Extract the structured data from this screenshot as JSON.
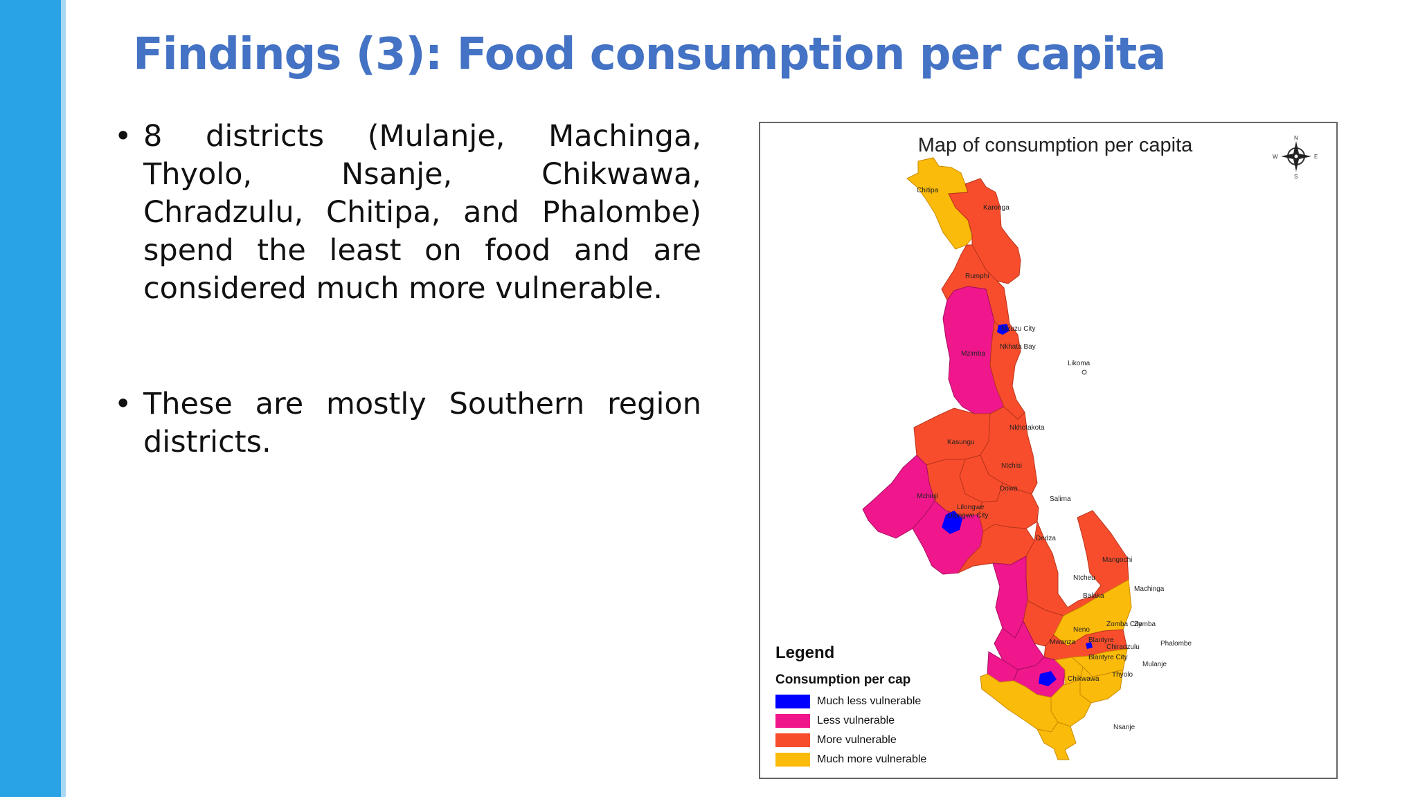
{
  "slide": {
    "title": "Findings (3): Food consumption per capita",
    "bullets": [
      "8 districts (Mulanje, Machinga, Thyolo, Nsanje, Chikwawa, Chradzulu, Chitipa, and Phalombe) spend the least on food and are considered much more vulnerable.",
      "These are mostly Southern region districts."
    ],
    "bullet_symbol": "•"
  },
  "map": {
    "title": "Map of consumption per capita",
    "compass": {
      "icon": "compass-rose-icon",
      "n": "N",
      "s": "S",
      "e": "E",
      "w": "W"
    },
    "legend": {
      "title": "Legend",
      "subtitle": "Consumption per cap",
      "items": [
        {
          "label": "Much less vulnerable",
          "color": "#0000ff"
        },
        {
          "label": "Less vulnerable",
          "color": "#f0178c"
        },
        {
          "label": "More vulnerable",
          "color": "#f84d2c"
        },
        {
          "label": "Much more vulnerable",
          "color": "#fbbb0a"
        }
      ]
    },
    "districts": [
      {
        "name": "Chitipa",
        "category": "Much more vulnerable"
      },
      {
        "name": "Karonga",
        "category": "More vulnerable"
      },
      {
        "name": "Rumphi",
        "category": "More vulnerable"
      },
      {
        "name": "Mzuzu City",
        "category": "Much less vulnerable"
      },
      {
        "name": "Nkhata Bay",
        "category": "More vulnerable"
      },
      {
        "name": "Mzimba",
        "category": "Less vulnerable"
      },
      {
        "name": "Likoma",
        "category": ""
      },
      {
        "name": "Nkhotakota",
        "category": "More vulnerable"
      },
      {
        "name": "Kasungu",
        "category": "More vulnerable"
      },
      {
        "name": "Ntchisi",
        "category": "More vulnerable"
      },
      {
        "name": "Dowa",
        "category": "More vulnerable"
      },
      {
        "name": "Mchinji",
        "category": "Less vulnerable"
      },
      {
        "name": "Salima",
        "category": "More vulnerable"
      },
      {
        "name": "Lilongwe",
        "category": "Less vulnerable"
      },
      {
        "name": "Lilongwe City",
        "category": "Much less vulnerable"
      },
      {
        "name": "Dedza",
        "category": "More vulnerable"
      },
      {
        "name": "Mangochi",
        "category": "More vulnerable"
      },
      {
        "name": "Ntcheu",
        "category": "Less vulnerable"
      },
      {
        "name": "Balaka",
        "category": "More vulnerable"
      },
      {
        "name": "Machinga",
        "category": "Much more vulnerable"
      },
      {
        "name": "Zomba City",
        "category": "Much less vulnerable"
      },
      {
        "name": "Zomba",
        "category": "More vulnerable"
      },
      {
        "name": "Neno",
        "category": "Less vulnerable"
      },
      {
        "name": "Mwanza",
        "category": "Less vulnerable"
      },
      {
        "name": "Blantyre",
        "category": "Less vulnerable"
      },
      {
        "name": "Blantyre City",
        "category": "Much less vulnerable"
      },
      {
        "name": "Chiradzulu",
        "category": "Much more vulnerable"
      },
      {
        "name": "Phalombe",
        "category": "Much more vulnerable"
      },
      {
        "name": "Mulanje",
        "category": "Much more vulnerable"
      },
      {
        "name": "Thyolo",
        "category": "Much more vulnerable"
      },
      {
        "name": "Chikwawa",
        "category": "Much more vulnerable"
      },
      {
        "name": "Nsanje",
        "category": "Much more vulnerable"
      }
    ]
  }
}
